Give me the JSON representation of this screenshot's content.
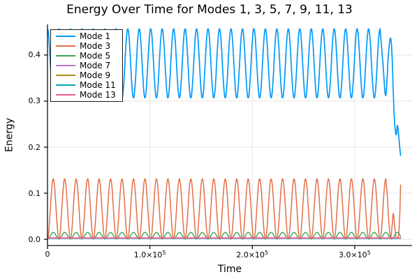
{
  "chart_data": {
    "type": "line",
    "title": "Energy Over Time for Modes 1, 3, 5, 7, 9, 11, 13",
    "xlabel": "Time",
    "ylabel": "Energy",
    "xlim": [
      0,
      356000
    ],
    "ylim": [
      -0.0135,
      0.4665
    ],
    "grid": true,
    "legend_position": "top-left",
    "t_end": 344800,
    "beat_period": 11200,
    "xticks": [
      {
        "value": 0,
        "base": "0",
        "exp": ""
      },
      {
        "value": 100000,
        "base": "1.0×10",
        "exp": "5"
      },
      {
        "value": 200000,
        "base": "2.0×10",
        "exp": "5"
      },
      {
        "value": 300000,
        "base": "3.0×10",
        "exp": "5"
      }
    ],
    "yticks": [
      {
        "value": 0.0,
        "label": "0.0"
      },
      {
        "value": 0.1,
        "label": "0.1"
      },
      {
        "value": 0.2,
        "label": "0.2"
      },
      {
        "value": 0.3,
        "label": "0.3"
      },
      {
        "value": 0.4,
        "label": "0.4"
      }
    ],
    "series": [
      {
        "name": "Mode 1",
        "color": "#009AFA",
        "width": 1.7,
        "model": {
          "kind": "inv-sin2",
          "max": 0.457,
          "min": 0.307,
          "period": 11200,
          "reg_end": 324800
        },
        "tail": [
          [
            324800,
            0.457
          ],
          [
            327600,
            0.382
          ],
          [
            330300,
            0.312
          ],
          [
            332900,
            0.4
          ],
          [
            335000,
            0.437
          ],
          [
            336500,
            0.398
          ],
          [
            338000,
            0.3
          ],
          [
            339300,
            0.245
          ],
          [
            340600,
            0.227
          ],
          [
            341700,
            0.247
          ],
          [
            342700,
            0.232
          ],
          [
            343800,
            0.205
          ],
          [
            344800,
            0.182
          ]
        ]
      },
      {
        "name": "Mode 3",
        "color": "#E36F47",
        "width": 1.5,
        "model": {
          "kind": "sin2",
          "max": 0.131,
          "min": 0.001,
          "period": 11200,
          "reg_end": 330400
        },
        "tail": [
          [
            330400,
            0.131
          ],
          [
            332000,
            0.09
          ],
          [
            333600,
            0.03
          ],
          [
            335200,
            0.005
          ],
          [
            336500,
            0.028
          ],
          [
            337800,
            0.056
          ],
          [
            339100,
            0.028
          ],
          [
            340400,
            0.005
          ],
          [
            341800,
            0.003
          ],
          [
            343000,
            0.012
          ],
          [
            344000,
            0.05
          ],
          [
            344800,
            0.118
          ]
        ]
      },
      {
        "name": "Mode 5",
        "color": "#3DA44E",
        "width": 1.4,
        "model": {
          "kind": "sin2",
          "max": 0.015,
          "min": 0.0008,
          "period": 11200,
          "reg_end": 344800
        },
        "tail": []
      },
      {
        "name": "Mode 7",
        "color": "#C371D2",
        "width": 1.5,
        "model": {
          "kind": "flat",
          "value": 0.0032
        },
        "tail": []
      },
      {
        "name": "Mode 9",
        "color": "#AC8E18",
        "width": 1.5,
        "model": {
          "kind": "flat",
          "value": 0.0026
        },
        "tail": []
      },
      {
        "name": "Mode 11",
        "color": "#00AAAE",
        "width": 1.5,
        "model": {
          "kind": "flat",
          "value": 0.0021
        },
        "tail": []
      },
      {
        "name": "Mode 13",
        "color": "#ED5E93",
        "width": 1.6,
        "model": {
          "kind": "flat",
          "value": 0.0027
        },
        "tail": []
      }
    ]
  },
  "style_colors": {
    "grid": "#e4e4e4",
    "axis": "#111111",
    "text": "#000000",
    "background": "#ffffff"
  }
}
